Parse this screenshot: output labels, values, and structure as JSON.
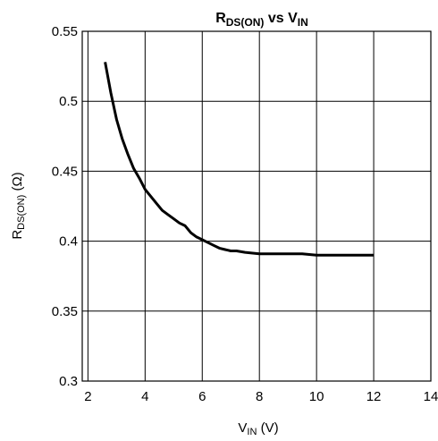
{
  "chart_data": {
    "type": "line",
    "title": {
      "main": "R",
      "main_sub": "DS(ON)",
      "mid": " vs V",
      "mid_sub": "IN"
    },
    "xlabel": {
      "main": "V",
      "sub": "IN",
      "suffix": " (V)"
    },
    "ylabel": {
      "main": "R",
      "sub": "DS(ON)",
      "suffix": " (Ω)"
    },
    "xlim": [
      1.8,
      14
    ],
    "ylim": [
      0.3,
      0.55
    ],
    "x_ticks": [
      2,
      4,
      6,
      8,
      10,
      12,
      14
    ],
    "x_tick_labels": [
      "2",
      "4",
      "6",
      "8",
      "10",
      "12",
      "14"
    ],
    "y_ticks": [
      0.3,
      0.35,
      0.4,
      0.45,
      0.5,
      0.55
    ],
    "y_tick_labels": [
      "0.3",
      "0.35",
      "0.4",
      "0.45",
      "0.5",
      "0.55"
    ],
    "grid": true,
    "series": [
      {
        "color": "#000000",
        "x": [
          2.6,
          2.8,
          3.0,
          3.2,
          3.4,
          3.6,
          3.8,
          4.0,
          4.2,
          4.4,
          4.6,
          4.8,
          5.0,
          5.2,
          5.4,
          5.6,
          5.8,
          6.0,
          6.2,
          6.4,
          6.6,
          6.8,
          7.0,
          7.2,
          7.5,
          8.0,
          8.5,
          9.0,
          9.5,
          10.0,
          10.5,
          11.0,
          11.5,
          12.0
        ],
        "y": [
          0.528,
          0.506,
          0.487,
          0.473,
          0.462,
          0.452,
          0.445,
          0.437,
          0.432,
          0.427,
          0.422,
          0.419,
          0.416,
          0.413,
          0.411,
          0.406,
          0.403,
          0.401,
          0.399,
          0.397,
          0.395,
          0.394,
          0.393,
          0.393,
          0.392,
          0.391,
          0.391,
          0.391,
          0.391,
          0.39,
          0.39,
          0.39,
          0.39,
          0.39
        ]
      }
    ]
  }
}
